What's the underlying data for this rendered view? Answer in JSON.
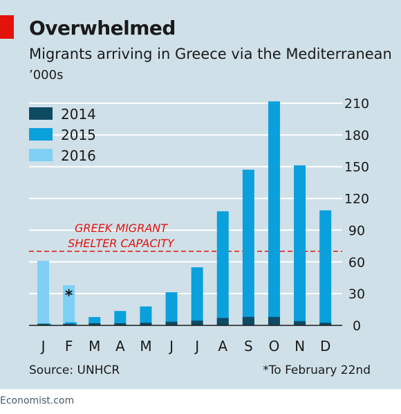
{
  "header": {
    "title": "Overwhelmed",
    "subtitle": "Migrants arriving in Greece via the Mediterranean",
    "unit": "’000s"
  },
  "footer": {
    "source": "Source: UNHCR",
    "footnote": "*To February 22nd",
    "brand": "Economist.com"
  },
  "colors": {
    "panel_bg": "#cfe0e8",
    "accent_red": "#e3120b",
    "series_2014": "#0f4a63",
    "series_2015": "#0aa0dc",
    "series_2016": "#7fd0f5",
    "gridline": "#ffffff"
  },
  "chart_data": {
    "type": "bar",
    "categories": [
      "J",
      "F",
      "M",
      "A",
      "M",
      "J",
      "J",
      "A",
      "S",
      "O",
      "N",
      "D"
    ],
    "series": [
      {
        "name": "2014",
        "color": "#0f4a63",
        "values": [
          1.5,
          1.5,
          2,
          2,
          2.5,
          3.5,
          4.5,
          7,
          8,
          8,
          4,
          2.5
        ]
      },
      {
        "name": "2015",
        "color": "#0aa0dc",
        "values": [
          1.7,
          2.9,
          7.9,
          13.6,
          17.9,
          31.3,
          54.9,
          107.8,
          147.1,
          211.7,
          151.2,
          108.7
        ]
      },
      {
        "name": "2016",
        "color": "#7fd0f5",
        "values": [
          61,
          38,
          null,
          null,
          null,
          null,
          null,
          null,
          null,
          null,
          null,
          null
        ]
      }
    ],
    "annotation_mark": "*",
    "ylim": [
      0,
      210
    ],
    "yticks": [
      0,
      30,
      60,
      90,
      120,
      150,
      180,
      210
    ],
    "reference_line": {
      "value": 70,
      "label_lines": [
        "GREEK MIGRANT",
        "SHELTER CAPACITY"
      ],
      "color": "#e3120b"
    },
    "grid": true,
    "y_axis_position": "right",
    "legend_position": "top-left"
  }
}
